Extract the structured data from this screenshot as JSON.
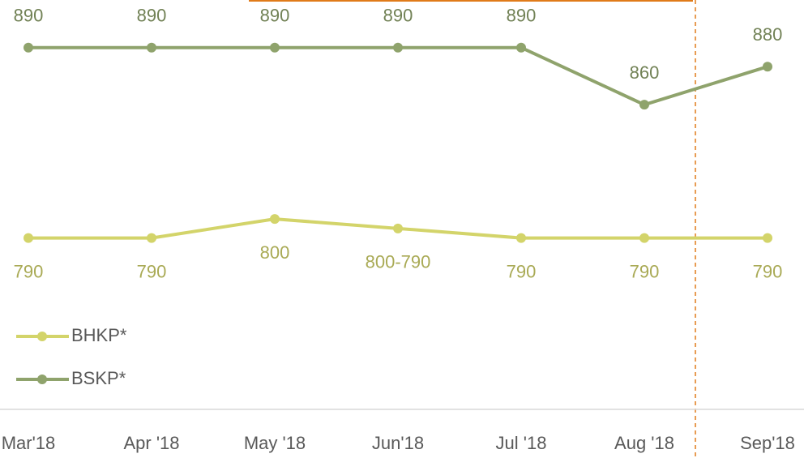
{
  "chart_data": {
    "type": "line",
    "categories": [
      "Mar'18",
      "Apr '18",
      "May '18",
      "Jun'18",
      "Jul '18",
      "Aug '18",
      "Sep'18"
    ],
    "series": [
      {
        "name": "BHKP*",
        "color": "#d3d46a",
        "label_position": "below",
        "values": [
          790,
          790,
          800,
          795,
          790,
          790,
          790
        ],
        "value_labels": [
          "790",
          "790",
          "800",
          "800-790",
          "790",
          "790",
          "790"
        ]
      },
      {
        "name": "BSKP*",
        "color": "#8fa36c",
        "label_position": "above",
        "values": [
          890,
          890,
          890,
          890,
          890,
          860,
          880
        ]
      }
    ],
    "ylim": [
      700,
      915
    ],
    "legend": "left"
  }
}
